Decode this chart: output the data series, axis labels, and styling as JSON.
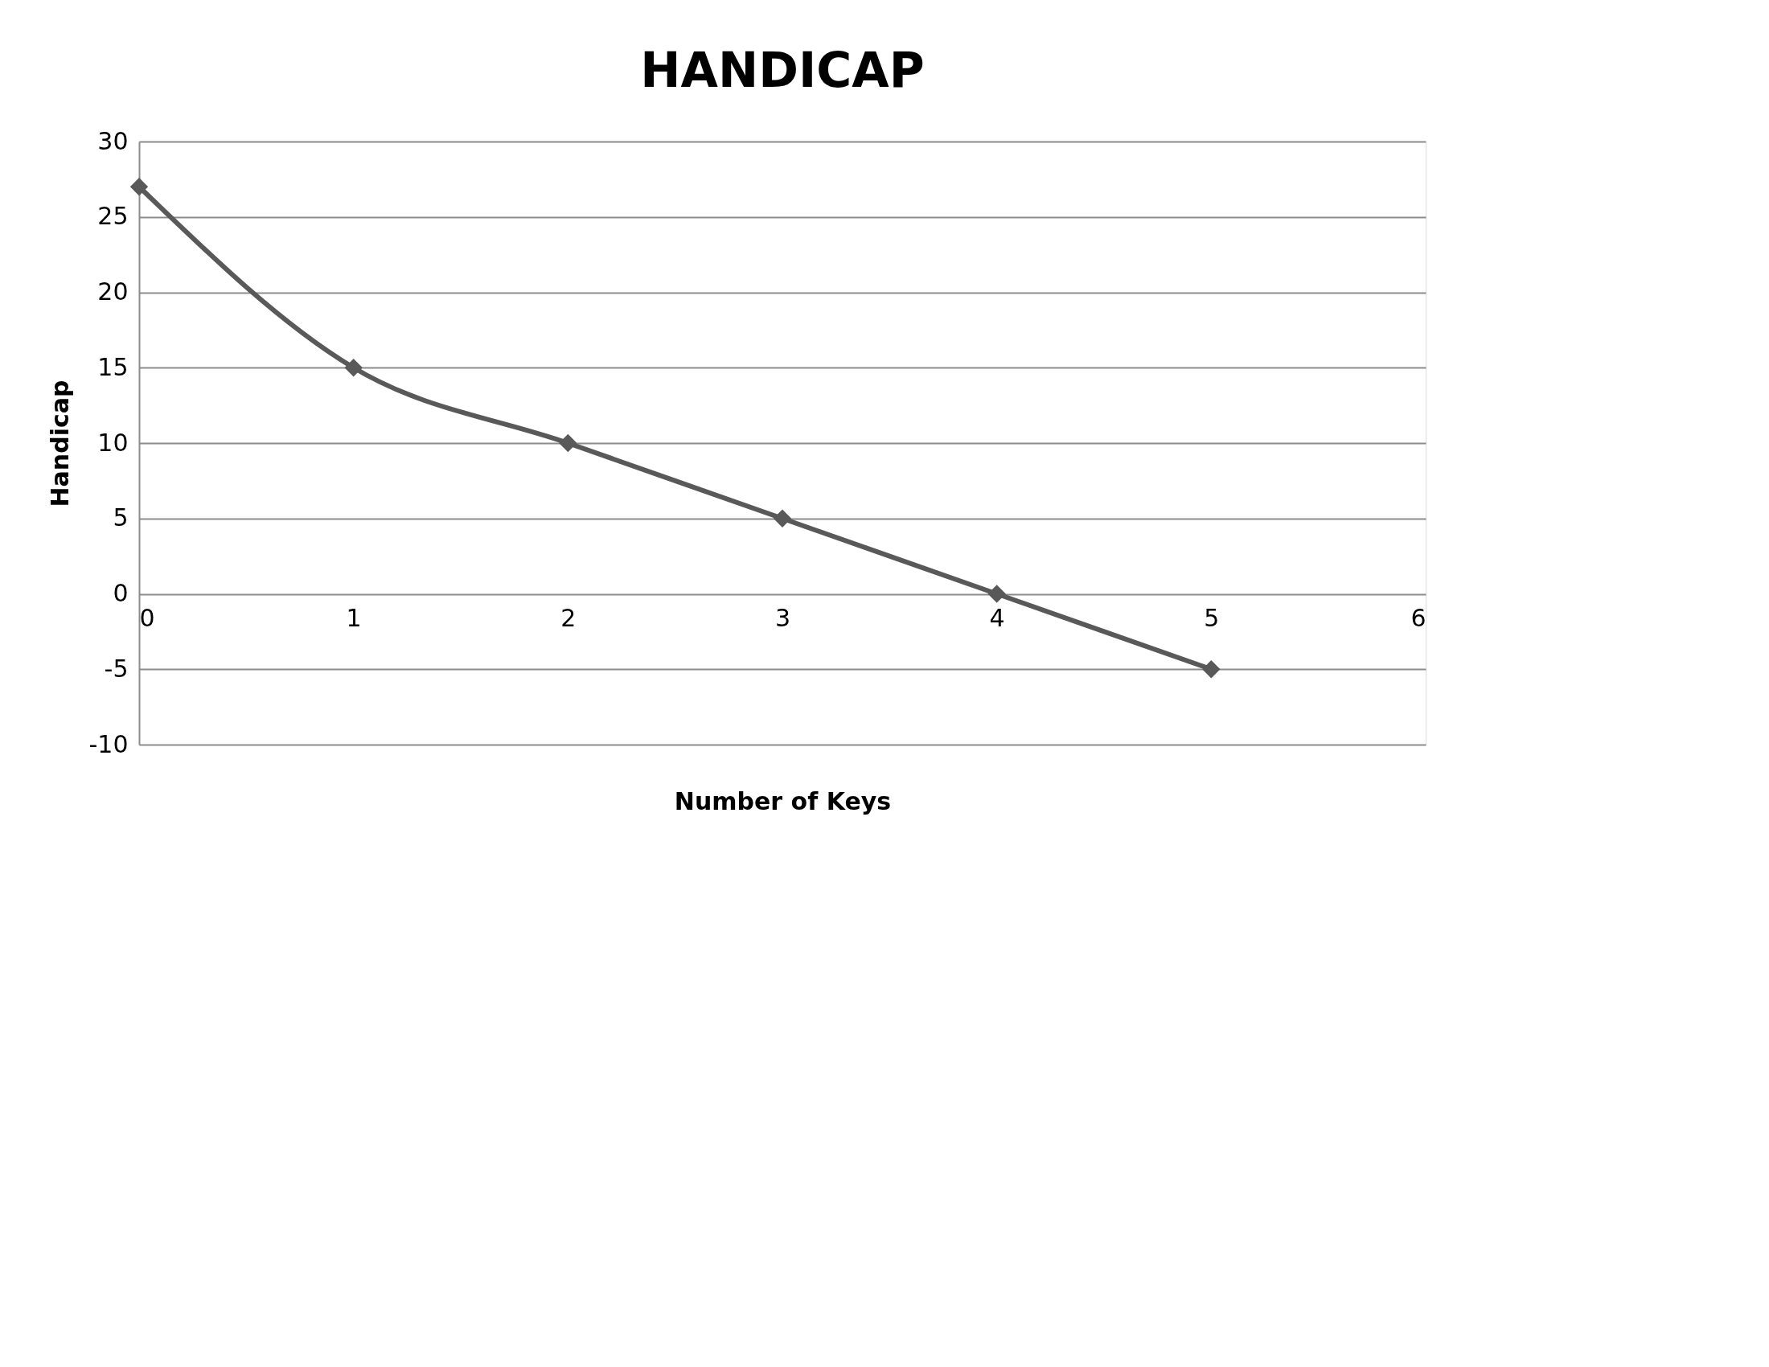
{
  "chart_data": {
    "type": "line",
    "title": "HANDICAP",
    "xlabel": "Number of Keys",
    "ylabel": "Handicap",
    "x": [
      0,
      1,
      2,
      3,
      4,
      5
    ],
    "series": [
      {
        "color": "#595959",
        "values": [
          27,
          15,
          10,
          5,
          0,
          -5
        ]
      }
    ],
    "xlim": [
      0,
      6
    ],
    "xticks": [
      0,
      1,
      2,
      3,
      4,
      5,
      6
    ],
    "ylim": [
      -10,
      30
    ],
    "yticks": [
      -10,
      -5,
      0,
      5,
      10,
      15,
      20,
      25,
      30
    ],
    "grid": "y",
    "marker": "diamond",
    "line_style": "solid"
  }
}
